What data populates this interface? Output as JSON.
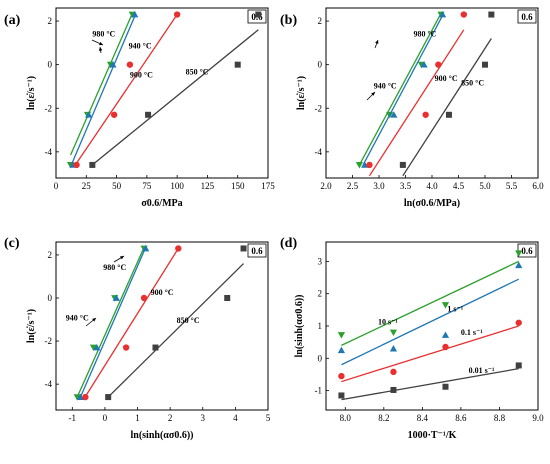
{
  "figure": {
    "title": ""
  },
  "chart_data": [
    {
      "type": "scatter",
      "panel": "(a)",
      "tag": "0.6",
      "xlabel": "σ0.6/MPa",
      "ylabel": "ln(ε̇/s⁻¹)",
      "xlim": [
        0,
        175
      ],
      "ylim": [
        -5.2,
        2.6
      ],
      "xticks": [
        0,
        25,
        50,
        75,
        100,
        125,
        150,
        175
      ],
      "yticks": [
        -4,
        -2,
        0,
        2
      ],
      "series": [
        {
          "name": "980 °C",
          "marker": "triangle-down",
          "color": "#2ca02c",
          "x": [
            12,
            26,
            45,
            63
          ],
          "y": [
            -4.6,
            -2.3,
            0,
            2.3
          ],
          "fit": [
            [
              12,
              -4.15
            ],
            [
              63,
              2.35
            ]
          ]
        },
        {
          "name": "940 °C",
          "marker": "triangle-up",
          "color": "#1f77b4",
          "x": [
            14,
            27,
            47,
            65
          ],
          "y": [
            -4.6,
            -2.3,
            0,
            2.3
          ],
          "fit": [
            [
              13,
              -4.55
            ],
            [
              66,
              2.35
            ]
          ]
        },
        {
          "name": "900 °C",
          "marker": "circle",
          "color": "#e83030",
          "x": [
            17,
            48,
            61,
            100
          ],
          "y": [
            -4.6,
            -2.3,
            0,
            2.3
          ],
          "fit": [
            [
              16,
              -4.6
            ],
            [
              100,
              2.3
            ]
          ]
        },
        {
          "name": "850 °C",
          "marker": "square",
          "color": "#404040",
          "x": [
            30,
            76,
            150,
            167
          ],
          "y": [
            -4.6,
            -2.3,
            0,
            2.3
          ],
          "fit": [
            [
              30,
              -4.6
            ],
            [
              167,
              1.6
            ]
          ]
        }
      ],
      "annotations": [
        {
          "text": "980 °C",
          "x": 30,
          "y": 1.3
        },
        {
          "text": "940 °C",
          "x": 60,
          "y": 0.75
        },
        {
          "text": "900 °C",
          "x": 61,
          "y": -0.6
        },
        {
          "text": "850 °C",
          "x": 107,
          "y": -0.45
        }
      ]
    },
    {
      "type": "scatter",
      "panel": "(b)",
      "tag": "0.6",
      "xlabel": "ln(σ0.6/MPa)",
      "ylabel": "ln(ε̇/s⁻¹)",
      "xlim": [
        2.0,
        6.0
      ],
      "ylim": [
        -5.2,
        2.6
      ],
      "xticks": [
        2.0,
        2.5,
        3.0,
        3.5,
        4.0,
        4.5,
        5.0,
        5.5,
        6.0
      ],
      "yticks": [
        -4,
        -2,
        0,
        2
      ],
      "series": [
        {
          "name": "980 °C",
          "marker": "triangle-down",
          "color": "#2ca02c",
          "x": [
            2.63,
            3.2,
            3.8,
            4.17
          ],
          "y": [
            -4.6,
            -2.3,
            0,
            2.3
          ],
          "fit": [
            [
              2.63,
              -4.6
            ],
            [
              4.17,
              2.35
            ]
          ]
        },
        {
          "name": "940 °C",
          "marker": "triangle-up",
          "color": "#1f77b4",
          "x": [
            2.73,
            3.28,
            3.85,
            4.2
          ],
          "y": [
            -4.6,
            -2.3,
            0,
            2.3
          ],
          "fit": [
            [
              2.7,
              -4.6
            ],
            [
              4.22,
              2.35
            ]
          ]
        },
        {
          "name": "900 °C",
          "marker": "circle",
          "color": "#e83030",
          "x": [
            2.82,
            3.88,
            4.12,
            4.6
          ],
          "y": [
            -4.6,
            -2.3,
            0,
            2.3
          ],
          "fit": [
            [
              2.82,
              -5.1
            ],
            [
              4.6,
              1.6
            ]
          ]
        },
        {
          "name": "850 °C",
          "marker": "square",
          "color": "#404040",
          "x": [
            3.45,
            4.32,
            5.0,
            5.12
          ],
          "y": [
            -4.6,
            -2.3,
            0,
            2.3
          ],
          "fit": [
            [
              3.45,
              -5.1
            ],
            [
              5.12,
              1.2
            ]
          ]
        }
      ],
      "annotations": [
        {
          "text": "980 °C",
          "x": 3.65,
          "y": 1.3
        },
        {
          "text": "940 °C",
          "x": 2.9,
          "y": -1.1
        },
        {
          "text": "900 °C",
          "x": 4.05,
          "y": -0.75
        },
        {
          "text": "850 °C",
          "x": 4.55,
          "y": -0.95
        }
      ]
    },
    {
      "type": "scatter",
      "panel": "(c)",
      "tag": "0.6",
      "xlabel": "ln(sinh(ασ0.6))",
      "ylabel": "ln(ε̇/s⁻¹)",
      "xlim": [
        -1.5,
        5.0
      ],
      "ylim": [
        -5.2,
        2.6
      ],
      "xticks": [
        -1,
        0,
        1,
        2,
        3,
        4,
        5
      ],
      "yticks": [
        -4,
        -2,
        0,
        2
      ],
      "series": [
        {
          "name": "980 °C",
          "marker": "triangle-down",
          "color": "#2ca02c",
          "x": [
            -0.85,
            -0.35,
            0.3,
            1.2
          ],
          "y": [
            -4.6,
            -2.3,
            0,
            2.3
          ],
          "fit": [
            [
              -0.85,
              -4.6
            ],
            [
              1.2,
              2.35
            ]
          ]
        },
        {
          "name": "940 °C",
          "marker": "triangle-up",
          "color": "#1f77b4",
          "x": [
            -0.75,
            -0.25,
            0.35,
            1.25
          ],
          "y": [
            -4.6,
            -2.3,
            0,
            2.3
          ],
          "fit": [
            [
              -0.75,
              -4.6
            ],
            [
              1.25,
              2.35
            ]
          ]
        },
        {
          "name": "900 °C",
          "marker": "circle",
          "color": "#e83030",
          "x": [
            -0.6,
            0.65,
            1.2,
            2.25
          ],
          "y": [
            -4.6,
            -2.3,
            0,
            2.3
          ],
          "fit": [
            [
              -0.65,
              -4.7
            ],
            [
              2.25,
              2.3
            ]
          ]
        },
        {
          "name": "850 °C",
          "marker": "square",
          "color": "#404040",
          "x": [
            0.1,
            1.55,
            3.75,
            4.25
          ],
          "y": [
            -4.6,
            -2.3,
            0,
            2.3
          ],
          "fit": [
            [
              0.1,
              -4.6
            ],
            [
              4.25,
              1.6
            ]
          ]
        }
      ],
      "annotations": [
        {
          "text": "980 °C",
          "x": -0.05,
          "y": 1.3
        },
        {
          "text": "940 °C",
          "x": -1.2,
          "y": -1.05
        },
        {
          "text": "900 °C",
          "x": 1.4,
          "y": 0.15
        },
        {
          "text": "850 °C",
          "x": 2.2,
          "y": -1.15
        }
      ]
    },
    {
      "type": "scatter",
      "panel": "(d)",
      "tag": "0.6",
      "xlabel": "1000·T⁻¹/K",
      "ylabel": "ln(sinh(ασ0.6))",
      "xlim": [
        7.9,
        9.0
      ],
      "ylim": [
        -1.6,
        3.6
      ],
      "xticks": [
        8.0,
        8.2,
        8.4,
        8.6,
        8.8,
        9.0
      ],
      "yticks": [
        -1,
        0,
        1,
        2,
        3
      ],
      "series": [
        {
          "name": "10 s⁻¹",
          "marker": "triangle-down",
          "color": "#2ca02c",
          "x": [
            7.98,
            8.25,
            8.52,
            8.9
          ],
          "y": [
            0.72,
            0.8,
            1.65,
            3.25
          ],
          "fit": [
            [
              7.98,
              0.4
            ],
            [
              8.9,
              3.0
            ]
          ]
        },
        {
          "name": "1 s⁻¹",
          "marker": "triangle-up",
          "color": "#1f77b4",
          "x": [
            7.98,
            8.25,
            8.52,
            8.9
          ],
          "y": [
            0.25,
            0.3,
            0.72,
            2.88
          ],
          "fit": [
            [
              7.98,
              -0.2
            ],
            [
              8.9,
              2.45
            ]
          ]
        },
        {
          "name": "0.1 s⁻¹",
          "marker": "circle",
          "color": "#e83030",
          "x": [
            7.98,
            8.25,
            8.52,
            8.9
          ],
          "y": [
            -0.55,
            -0.42,
            0.35,
            1.1
          ],
          "fit": [
            [
              7.98,
              -0.72
            ],
            [
              8.9,
              1.0
            ]
          ]
        },
        {
          "name": "0.01 s⁻¹",
          "marker": "square",
          "color": "#404040",
          "x": [
            7.98,
            8.25,
            8.52,
            8.9
          ],
          "y": [
            -1.15,
            -0.98,
            -0.88,
            -0.22
          ],
          "fit": [
            [
              7.98,
              -1.28
            ],
            [
              8.9,
              -0.32
            ]
          ]
        }
      ],
      "annotations": [
        {
          "text": "10 s⁻¹",
          "x": 8.17,
          "y": 1.05
        },
        {
          "text": "1 s⁻¹",
          "x": 8.53,
          "y": 1.45
        },
        {
          "text": "0.1 s⁻¹",
          "x": 8.6,
          "y": 0.72
        },
        {
          "text": "0.01 s⁻¹",
          "x": 8.64,
          "y": -0.45
        }
      ]
    }
  ]
}
